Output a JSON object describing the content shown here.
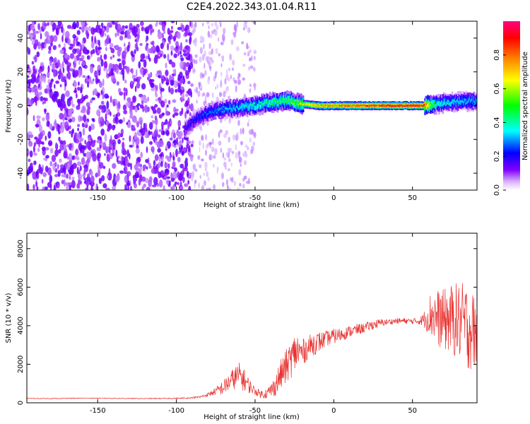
{
  "title": "C2E4.2022.343.01.04.R11",
  "chart_data": [
    {
      "type": "heatmap",
      "xlabel": "Height of straight line (km)",
      "ylabel": "Frequency (Hz)",
      "xlim": [
        -195,
        91
      ],
      "ylim": [
        -50,
        50
      ],
      "xticks": [
        -150,
        -100,
        -50,
        0,
        50
      ],
      "yticks": [
        -40,
        -20,
        0,
        20,
        40
      ],
      "colorbar": {
        "label": "Normalized spectral amplitude",
        "range": [
          0,
          1
        ],
        "ticks": [
          "0.0",
          "0.2",
          "0.4",
          "0.6",
          "0.8"
        ],
        "colormap": [
          "#ffffff",
          "#d9b3ff",
          "#8000ff",
          "#0000ff",
          "#00ffff",
          "#00ff00",
          "#ffff00",
          "#ff8000",
          "#ff0000",
          "#ff0080"
        ]
      },
      "ridge": {
        "description_points_x": [
          -95,
          -88,
          -80,
          -70,
          -60,
          -50,
          -40,
          -30,
          -20,
          -10,
          0,
          10,
          20,
          30,
          40,
          50,
          57,
          65,
          75,
          91
        ],
        "description_points_y": [
          -14,
          -8,
          -4,
          -2,
          -1,
          0,
          2,
          3,
          1,
          0,
          0,
          0,
          0,
          0,
          0,
          0,
          0,
          1,
          2,
          3
        ],
        "peak_amplitude": [
          0.2,
          0.25,
          0.3,
          0.35,
          0.4,
          0.45,
          0.5,
          0.55,
          0.7,
          0.8,
          0.85,
          0.9,
          0.92,
          0.95,
          1.0,
          1.0,
          0.95,
          0.45,
          0.4,
          0.35
        ]
      }
    },
    {
      "type": "line",
      "xlabel": "Height of straight line (km)",
      "ylabel": "SNR (10 * v/v)",
      "xlim": [
        -195,
        91
      ],
      "ylim": [
        0,
        8800
      ],
      "xticks": [
        -150,
        -100,
        -50,
        0,
        50
      ],
      "yticks": [
        0,
        2000,
        4000,
        6000,
        8000
      ],
      "color": "#e8312f",
      "series": [
        {
          "x": [
            -195,
            -180,
            -160,
            -140,
            -120,
            -100,
            -92,
            -85,
            -80,
            -75,
            -70,
            -66,
            -63,
            -60,
            -57,
            -54,
            -50,
            -46,
            -42,
            -38,
            -34,
            -30,
            -26,
            -24,
            -20,
            -16,
            -12,
            -8,
            -4,
            0,
            5,
            10,
            15,
            20,
            25,
            30,
            35,
            40,
            45,
            50,
            55,
            58,
            62,
            66,
            70,
            74,
            78,
            82,
            86,
            89,
            91
          ],
          "y": [
            230,
            220,
            240,
            230,
            220,
            230,
            250,
            300,
            420,
            600,
            800,
            1100,
            1300,
            1400,
            1200,
            900,
            600,
            450,
            500,
            800,
            1400,
            1900,
            2400,
            2700,
            2600,
            2900,
            3100,
            3200,
            3350,
            3450,
            3550,
            3700,
            3800,
            3900,
            4050,
            4150,
            4200,
            4250,
            4250,
            4230,
            4250,
            4350,
            4600,
            4400,
            4300,
            4350,
            4250,
            4150,
            3950,
            3700,
            3500
          ],
          "noise": [
            20,
            20,
            20,
            20,
            20,
            25,
            30,
            60,
            100,
            200,
            400,
            500,
            600,
            700,
            600,
            400,
            200,
            200,
            300,
            500,
            800,
            900,
            1000,
            1100,
            700,
            600,
            600,
            500,
            400,
            400,
            350,
            300,
            300,
            250,
            250,
            200,
            150,
            150,
            150,
            150,
            200,
            500,
            1300,
            1500,
            1600,
            1800,
            2000,
            2100,
            2300,
            2000,
            1800
          ]
        }
      ]
    }
  ]
}
